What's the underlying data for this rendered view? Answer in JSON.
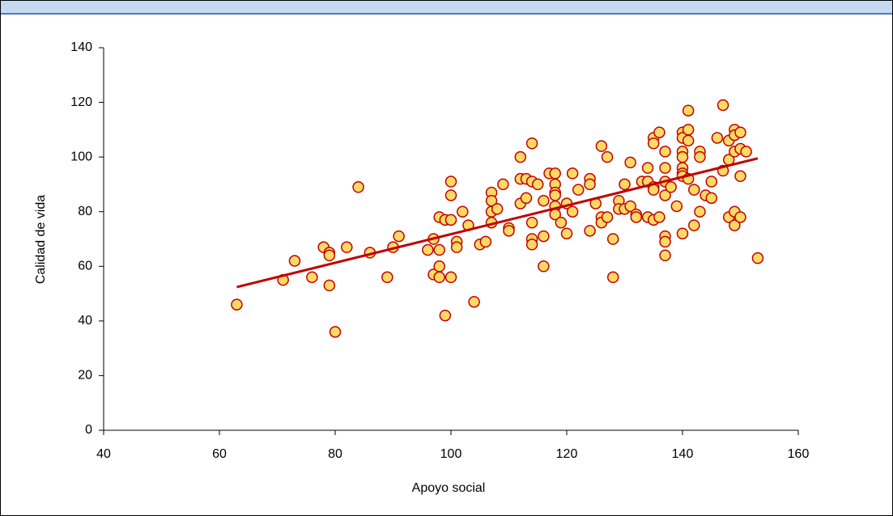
{
  "chart_data": {
    "type": "scatter",
    "xlabel": "Apoyo social",
    "ylabel": "Calidad de vida",
    "xlim": [
      40,
      160
    ],
    "xticks": [
      40,
      60,
      80,
      100,
      120,
      140,
      160
    ],
    "ylim": [
      0,
      140
    ],
    "yticks": [
      0,
      20,
      40,
      60,
      80,
      100,
      120,
      140
    ],
    "color": "#ffd966",
    "edge_color": "#c00000",
    "x": [
      63,
      71,
      73,
      76,
      78,
      79,
      79,
      79,
      80,
      82,
      84,
      86,
      89,
      90,
      91,
      96,
      97,
      97,
      98,
      98,
      98,
      98,
      99,
      99,
      100,
      100,
      100,
      100,
      101,
      101,
      102,
      103,
      104,
      105,
      106,
      107,
      107,
      107,
      107,
      108,
      109,
      110,
      110,
      112,
      112,
      112,
      113,
      113,
      114,
      114,
      114,
      114,
      114,
      115,
      116,
      116,
      116,
      117,
      118,
      118,
      118,
      118,
      118,
      118,
      119,
      120,
      120,
      121,
      121,
      122,
      124,
      124,
      124,
      125,
      126,
      126,
      126,
      127,
      127,
      128,
      128,
      129,
      129,
      130,
      130,
      131,
      131,
      132,
      132,
      133,
      134,
      134,
      134,
      135,
      135,
      135,
      135,
      135,
      136,
      136,
      137,
      137,
      137,
      137,
      137,
      137,
      137,
      138,
      139,
      140,
      140,
      140,
      140,
      140,
      140,
      140,
      140,
      141,
      141,
      141,
      141,
      142,
      142,
      143,
      143,
      143,
      144,
      145,
      145,
      146,
      147,
      147,
      148,
      148,
      148,
      149,
      149,
      149,
      149,
      149,
      150,
      150,
      150,
      150,
      151,
      153
    ],
    "values": [
      46,
      55,
      62,
      56,
      67,
      65,
      64,
      53,
      36,
      67,
      89,
      65,
      56,
      67,
      71,
      66,
      70,
      57,
      78,
      60,
      56,
      66,
      42,
      77,
      91,
      86,
      56,
      77,
      69,
      67,
      80,
      75,
      47,
      68,
      69,
      87,
      84,
      80,
      76,
      81,
      90,
      74,
      73,
      100,
      92,
      83,
      92,
      85,
      105,
      76,
      70,
      68,
      91,
      90,
      84,
      71,
      60,
      94,
      94,
      90,
      87,
      82,
      79,
      86,
      76,
      83,
      72,
      94,
      80,
      88,
      92,
      90,
      73,
      83,
      104,
      78,
      76,
      100,
      78,
      70,
      56,
      84,
      81,
      90,
      81,
      98,
      82,
      79,
      78,
      91,
      96,
      91,
      78,
      107,
      105,
      89,
      88,
      77,
      109,
      78,
      102,
      96,
      91,
      86,
      71,
      69,
      64,
      89,
      82,
      109,
      107,
      102,
      100,
      96,
      94,
      93,
      72,
      117,
      110,
      106,
      92,
      88,
      75,
      102,
      100,
      80,
      86,
      85,
      91,
      107,
      119,
      95,
      106,
      99,
      78,
      110,
      108,
      102,
      80,
      75,
      109,
      103,
      93,
      78,
      102,
      63
    ],
    "trendline": {
      "x": [
        63,
        153
      ],
      "values": [
        52.4,
        99.5
      ],
      "color": "#c00000"
    }
  }
}
